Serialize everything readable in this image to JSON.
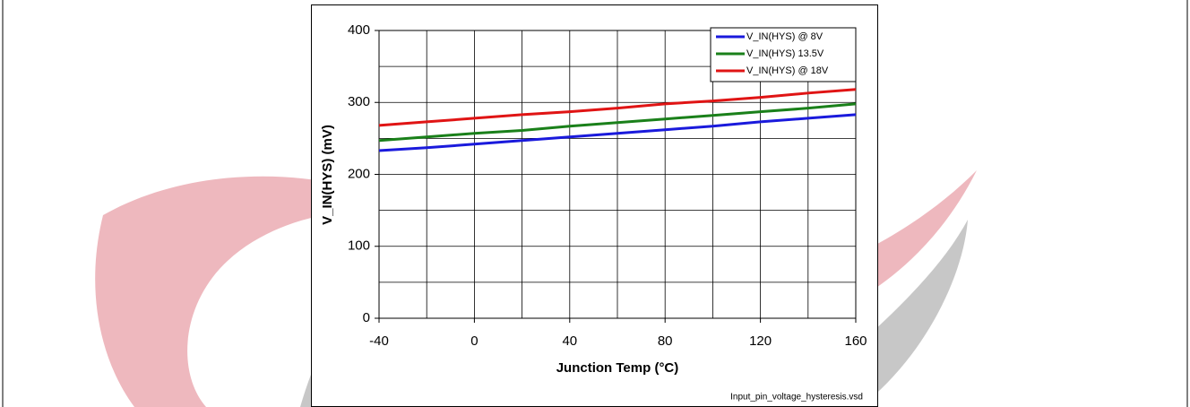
{
  "chart_data": {
    "type": "line",
    "x_label": "Junction Temp (°C)",
    "y_label": "V_IN(HYS) (mV)",
    "footnote": "Input_pin_voltage_hysteresis.vsd",
    "x": [
      -40,
      -20,
      0,
      20,
      40,
      60,
      80,
      100,
      120,
      140,
      160
    ],
    "series": [
      {
        "name": "V_IN(HYS) @ 8V",
        "color": "#1a1adc",
        "values": [
          233,
          237,
          242,
          247,
          252,
          257,
          262,
          267,
          273,
          278,
          283
        ]
      },
      {
        "name": "V_IN(HYS) 13.5V",
        "color": "#1a801a",
        "values": [
          247,
          252,
          257,
          261,
          267,
          272,
          277,
          282,
          287,
          292,
          298
        ]
      },
      {
        "name": "V_IN(HYS) @ 18V",
        "color": "#e01414",
        "values": [
          268,
          273,
          278,
          283,
          287,
          292,
          298,
          302,
          307,
          313,
          318
        ]
      }
    ],
    "xlim": [
      -40,
      160
    ],
    "xticks": [
      -40,
      0,
      40,
      80,
      120,
      160
    ],
    "xgrid": [
      -20,
      0,
      20,
      40,
      60,
      80,
      100,
      120,
      140
    ],
    "ylim": [
      0,
      400
    ],
    "yticks": [
      0,
      100,
      200,
      300,
      400
    ],
    "ygrid": [
      50,
      100,
      150,
      200,
      250,
      300,
      350
    ],
    "grid": true,
    "legend": "upper right"
  }
}
